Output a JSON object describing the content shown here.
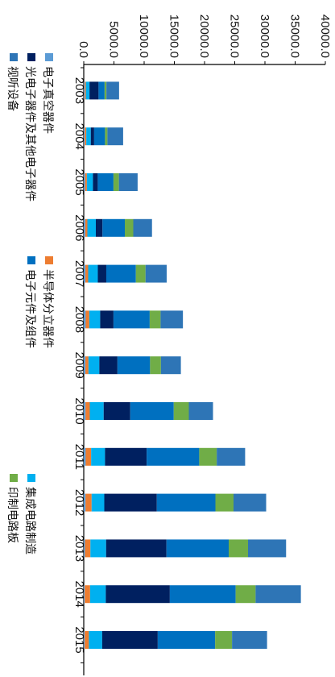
{
  "chart_data": {
    "type": "bar",
    "stacked": true,
    "orientation": "horizontal",
    "categories": [
      "2003",
      "2004",
      "2005",
      "2006",
      "2007",
      "2008",
      "2009",
      "2010",
      "2011",
      "2012",
      "2013",
      "2014",
      "2015"
    ],
    "xlim": [
      0,
      40000
    ],
    "ticks": [
      "0.0",
      "5000.0",
      "10000.0",
      "15000.0",
      "20000.0",
      "25000.0",
      "30000.0",
      "35000.0",
      "40000.0"
    ],
    "title": "",
    "xlabel": "",
    "ylabel": "",
    "legend_position": "top",
    "series": [
      {
        "name": "电子真空器件",
        "color": "#5b9bd5",
        "values": [
          150,
          170,
          220,
          250,
          280,
          320,
          280,
          300,
          320,
          300,
          200,
          150,
          150
        ]
      },
      {
        "name": "半导体分立器件",
        "color": "#ed7d31",
        "values": [
          200,
          250,
          300,
          350,
          450,
          600,
          500,
          700,
          900,
          1000,
          900,
          900,
          700
        ]
      },
      {
        "name": "集成电路制造",
        "color": "#00b0f0",
        "values": [
          600,
          750,
          1000,
          1400,
          1600,
          1800,
          1800,
          2300,
          2300,
          2100,
          2600,
          2600,
          2200
        ]
      },
      {
        "name": "光电子器件及其他电子器件",
        "color": "#002060",
        "values": [
          1500,
          550,
          800,
          1100,
          1400,
          2200,
          3000,
          4400,
          6900,
          8700,
          10000,
          10600,
          9200
        ]
      },
      {
        "name": "电子元件及组件",
        "color": "#0070c0",
        "values": [
          1000,
          1800,
          2600,
          3700,
          4900,
          6000,
          5400,
          7200,
          8700,
          9700,
          10300,
          10900,
          9500
        ]
      },
      {
        "name": "印制电路板",
        "color": "#70ad47",
        "values": [
          300,
          400,
          900,
          1400,
          1600,
          1800,
          1800,
          2500,
          2900,
          3000,
          3200,
          3300,
          2800
        ]
      },
      {
        "name": "视听设备",
        "color": "#2e75b6",
        "values": [
          2100,
          2600,
          3100,
          3100,
          3500,
          3700,
          3300,
          4000,
          4700,
          5400,
          6300,
          7500,
          5800
        ]
      }
    ]
  }
}
